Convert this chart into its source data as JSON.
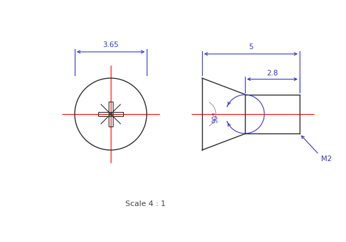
{
  "bg_color": "#ffffff",
  "line_color": "#2a2a2a",
  "dim_color": "#3333cc",
  "center_color": "#ff0000",
  "scale_text": "Scale 4 : 1",
  "dim_365": "3.65",
  "dim_5": "5",
  "dim_28": "2.8",
  "dim_90": "90°",
  "dim_M2": "M2",
  "fig_w": 5.0,
  "fig_h": 3.5,
  "dpi": 100
}
